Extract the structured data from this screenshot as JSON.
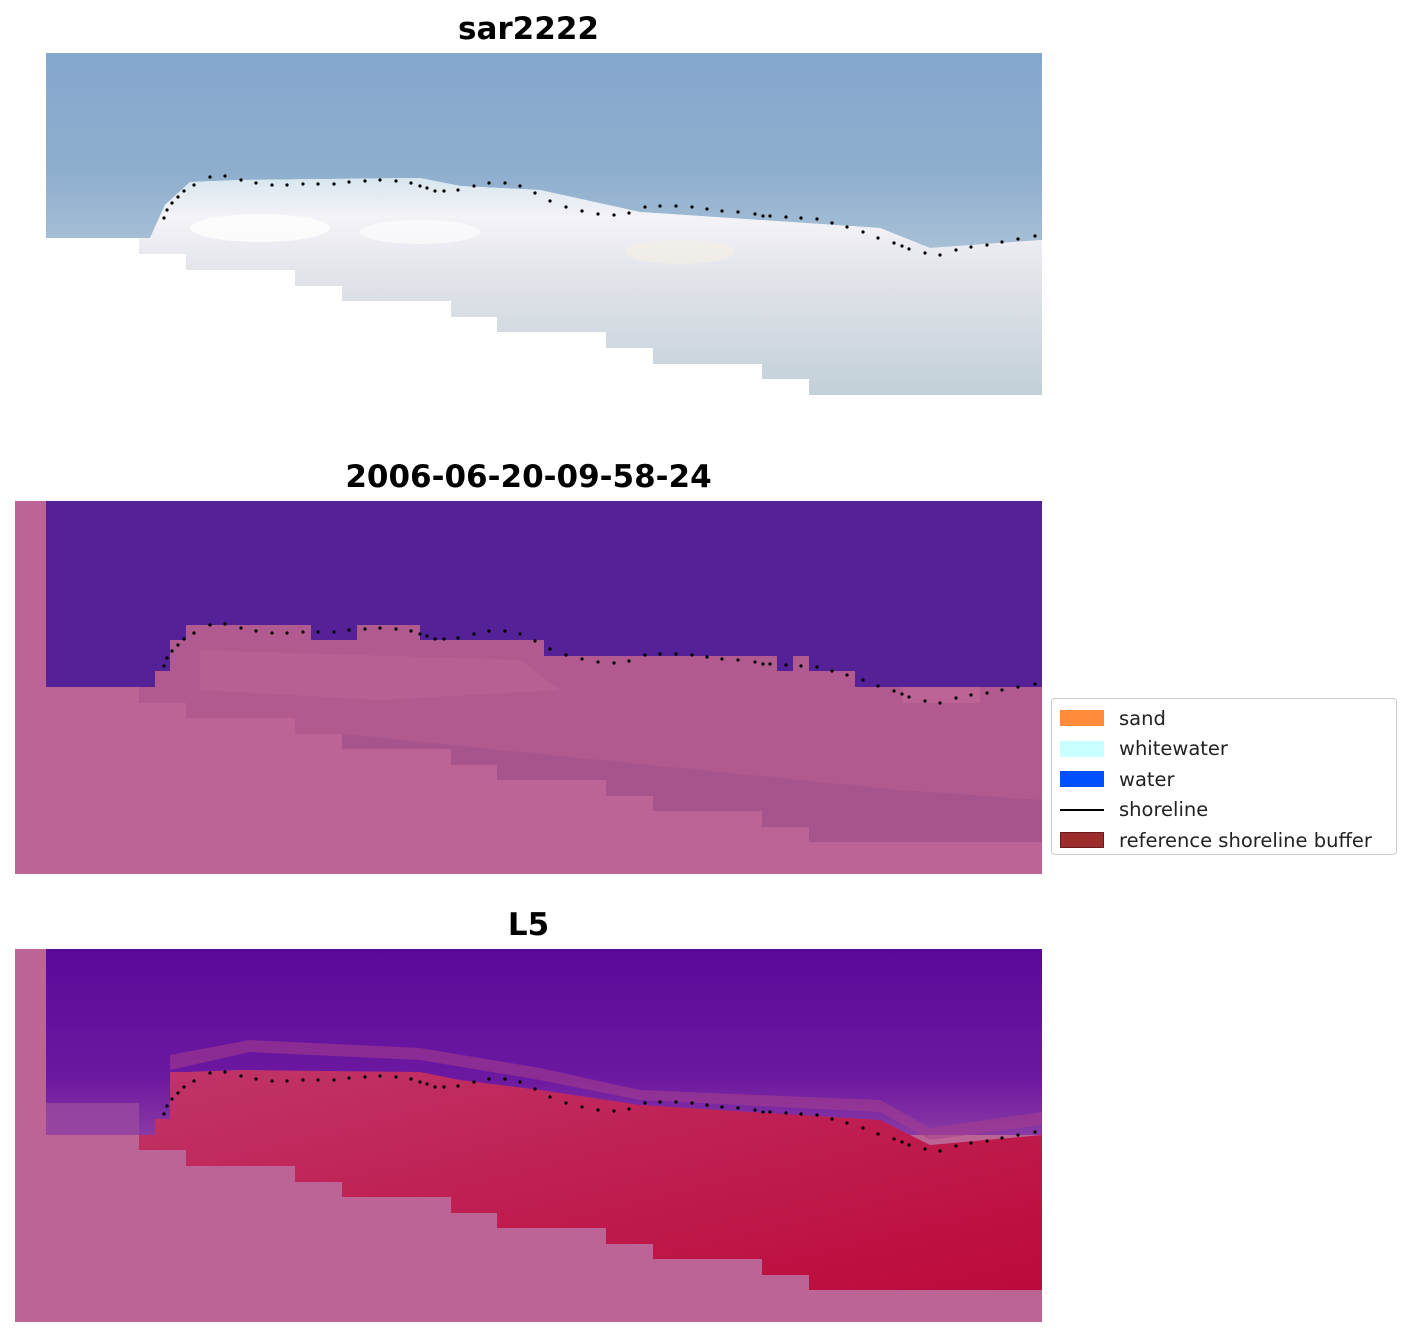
{
  "panels": [
    {
      "title": "sar2222",
      "kind": "rgb"
    },
    {
      "title": "2006-06-20-09-58-24",
      "kind": "classified"
    },
    {
      "title": "L5",
      "kind": "probability"
    }
  ],
  "legend": {
    "items": [
      {
        "label": "sand",
        "color": "#ff8c3a",
        "type": "patch"
      },
      {
        "label": "whitewater",
        "color": "#c8ffff",
        "type": "patch"
      },
      {
        "label": "water",
        "color": "#0050ff",
        "type": "patch"
      },
      {
        "label": "shoreline",
        "color": "#000000",
        "type": "line"
      },
      {
        "label": "reference shoreline buffer",
        "color": "#9b2d2d",
        "type": "patch"
      }
    ]
  },
  "colors": {
    "sky_water": "#8eaed0",
    "beach_white": "#eef0f4",
    "mask_pink": "#bc6496",
    "water_purple": "#542196",
    "sand_pink": "#b55a92",
    "prob_purple": "#6a14a0",
    "prob_red": "#c01a50"
  }
}
